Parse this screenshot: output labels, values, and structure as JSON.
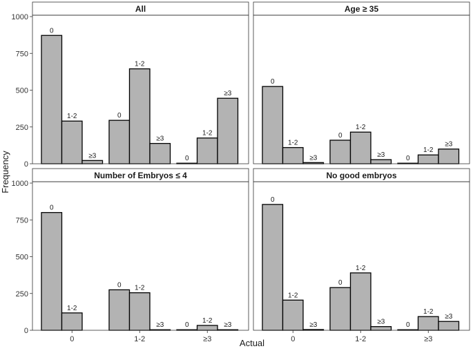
{
  "chart_data": {
    "type": "bar",
    "xlabel": "Actual",
    "ylabel": "Frequency",
    "ylim": [
      0,
      1000
    ],
    "yticks": [
      "0",
      "250",
      "500",
      "750",
      "1000"
    ],
    "categories": [
      "0",
      "1-2",
      "≥3"
    ],
    "series_names": [
      "0",
      "1-2",
      "≥3"
    ],
    "bar_color": "#b3b3b3",
    "bar_border_color": "#000000",
    "panels": [
      {
        "title": "All",
        "groups": [
          {
            "category": "0",
            "values": [
              872,
              290,
              22
            ]
          },
          {
            "category": "1-2",
            "values": [
              295,
              645,
              138
            ]
          },
          {
            "category": "≥3",
            "values": [
              3,
              175,
              445
            ]
          }
        ]
      },
      {
        "title": "Age ≥ 35",
        "groups": [
          {
            "category": "0",
            "values": [
              525,
              110,
              8
            ]
          },
          {
            "category": "1-2",
            "values": [
              160,
              215,
              28
            ]
          },
          {
            "category": "≥3",
            "values": [
              2,
              60,
              100
            ]
          }
        ]
      },
      {
        "title": "Number of Embryos ≤ 4",
        "groups": [
          {
            "category": "0",
            "values": [
              800,
              118,
              null
            ]
          },
          {
            "category": "1-2",
            "values": [
              275,
              255,
              3
            ]
          },
          {
            "category": "≥3",
            "values": [
              2,
              33,
              3
            ]
          }
        ]
      },
      {
        "title": "No good embryos",
        "groups": [
          {
            "category": "0",
            "values": [
              855,
              205,
              5
            ]
          },
          {
            "category": "1-2",
            "values": [
              290,
              390,
              25
            ]
          },
          {
            "category": "≥3",
            "values": [
              3,
              93,
              60
            ]
          }
        ]
      }
    ]
  }
}
